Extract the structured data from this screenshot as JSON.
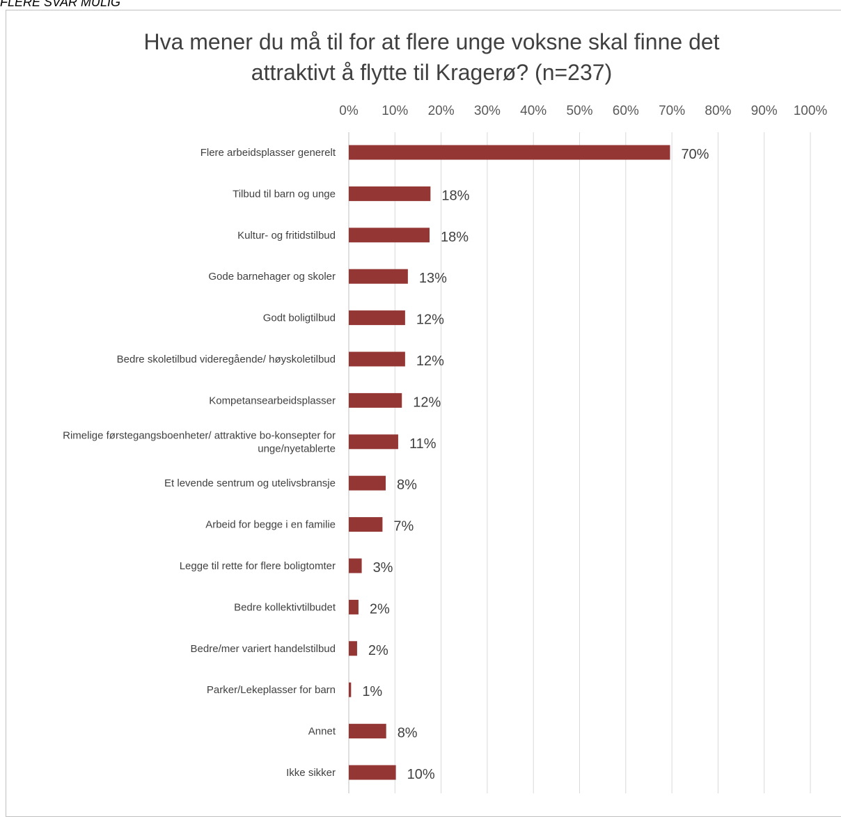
{
  "header_note": "FLERE SVAR MULIG",
  "chart_data": {
    "type": "bar",
    "orientation": "horizontal",
    "title": "Hva mener du må til for at flere unge voksne skal finne det attraktivt å flytte til Kragerø? (n=237)",
    "title_lines": [
      "Hva mener du må til for at flere unge voksne skal finne det",
      "attraktivt å flytte til Kragerø? (n=237)"
    ],
    "xlim": [
      0,
      100
    ],
    "x_ticks": [
      "0%",
      "10%",
      "20%",
      "30%",
      "40%",
      "50%",
      "60%",
      "70%",
      "80%",
      "90%",
      "100%"
    ],
    "grid": true,
    "bar_color": "#943634",
    "categories": [
      [
        "Flere arbeidsplasser generelt"
      ],
      [
        "Tilbud til barn og unge"
      ],
      [
        "Kultur- og fritidstilbud"
      ],
      [
        "Gode barnehager og skoler"
      ],
      [
        "Godt boligtilbud"
      ],
      [
        "Bedre skoletilbud videregående/ høyskoletilbud"
      ],
      [
        "Kompetansearbeidsplasser"
      ],
      [
        "Rimelige førstegangsboenheter/ attraktive bo-konsepter for",
        "unge/nyetablerte"
      ],
      [
        "Et levende sentrum og utelivsbransje"
      ],
      [
        "Arbeid for begge i en familie"
      ],
      [
        "Legge til rette for flere boligtomter"
      ],
      [
        "Bedre kollektivtilbudet"
      ],
      [
        "Bedre/mer variert handelstilbud"
      ],
      [
        "Parker/Lekeplasser for barn"
      ],
      [
        "Annet"
      ],
      [
        "Ikke sikker"
      ]
    ],
    "values": [
      69.6,
      17.7,
      17.5,
      12.8,
      12.2,
      12.2,
      11.5,
      10.7,
      8.0,
      7.3,
      2.8,
      2.1,
      1.8,
      0.5,
      8.1,
      10.2
    ],
    "data_labels": [
      "70%",
      "18%",
      "18%",
      "13%",
      "12%",
      "12%",
      "12%",
      "11%",
      "8%",
      "7%",
      "3%",
      "2%",
      "2%",
      "1%",
      "8%",
      "10%"
    ]
  }
}
